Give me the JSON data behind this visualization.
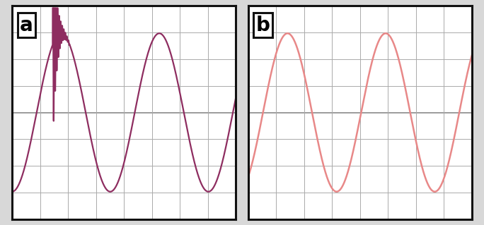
{
  "background_color": "#d8d8d8",
  "panel_bg": "#ffffff",
  "grid_color": "#aaaaaa",
  "grid_linewidth": 0.7,
  "border_color": "#111111",
  "border_linewidth": 2.2,
  "label_fontsize": 20,
  "label_box_color": "#ffffff",
  "label_a": "a",
  "label_b": "b",
  "color_a": "#8e2d60",
  "color_b": "#e88888",
  "linewidth_a": 1.6,
  "linewidth_b": 1.8,
  "grid_nx": 8,
  "grid_ny": 8,
  "ylim": [
    -1.35,
    1.35
  ],
  "xlim": [
    0,
    8
  ],
  "sine_freq": 0.285,
  "phase_a": -1.57,
  "phase_b": -0.95,
  "transient_start": 1.45,
  "transient_end": 2.05,
  "transient_hf_freq": 18.0,
  "transient_amplitude": 1.3
}
